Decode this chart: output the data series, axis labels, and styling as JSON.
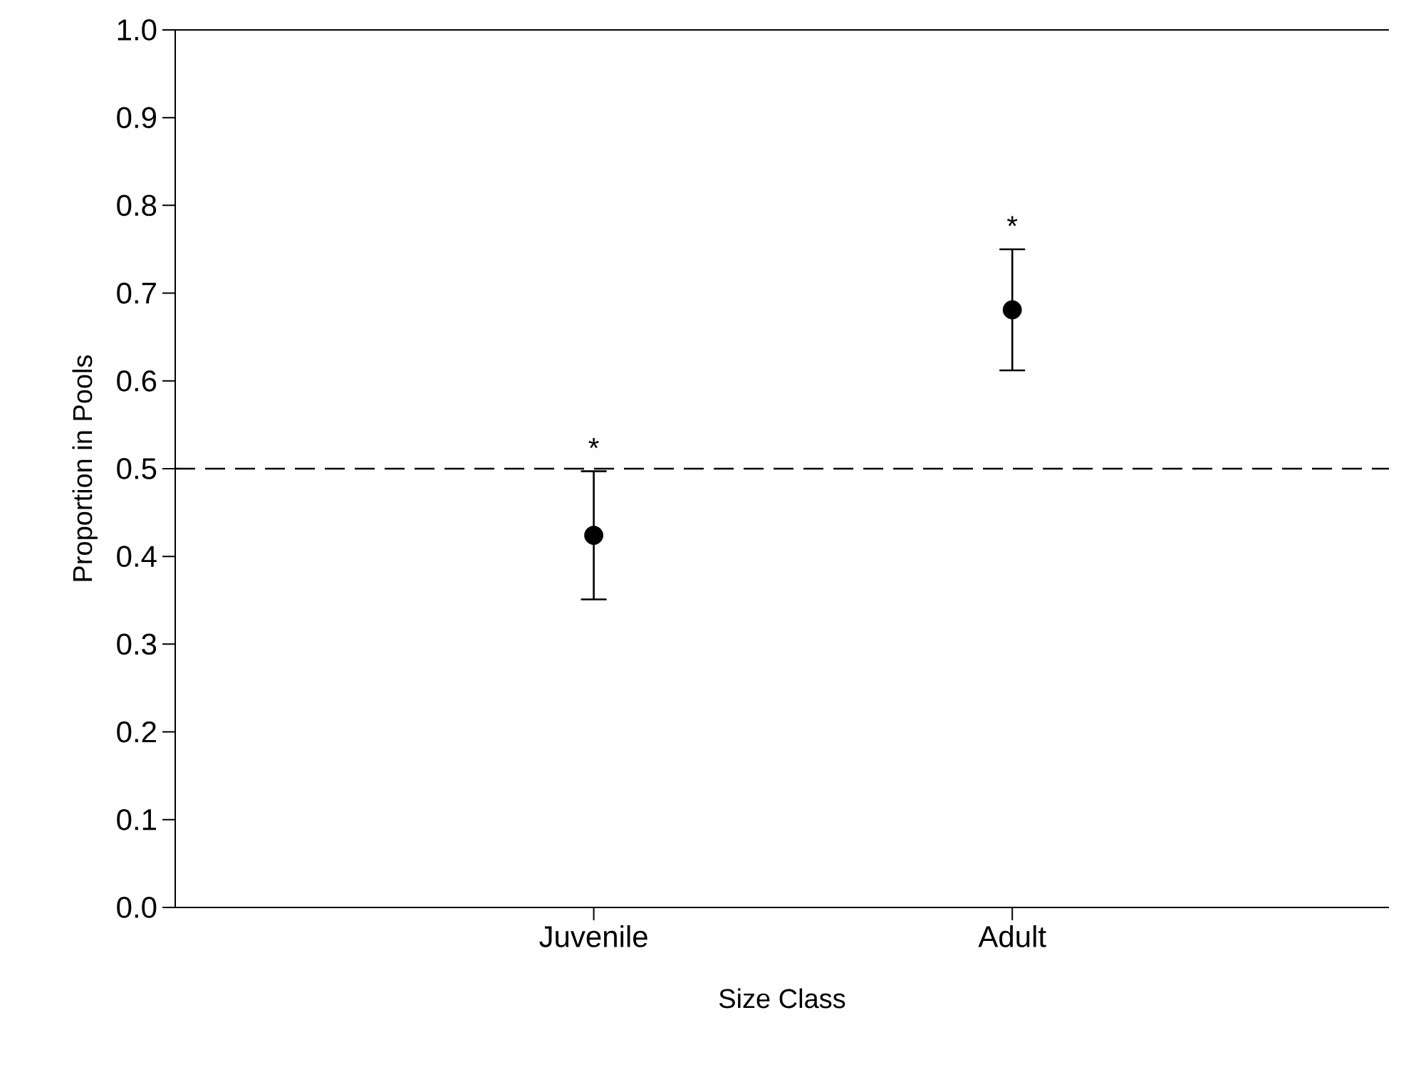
{
  "chart_data": {
    "type": "scatter",
    "xlabel": "Size Class",
    "ylabel": "Proportion in Pools",
    "categories": [
      "Juvenile",
      "Adult"
    ],
    "values": [
      0.424,
      0.681
    ],
    "errors": [
      0.073,
      0.069
    ],
    "color": "#000000",
    "marker": "circle",
    "ylim": [
      0.0,
      1.0
    ],
    "yticks": [
      {
        "value": 0,
        "label": "0.0"
      },
      0.1,
      0.2,
      0.3,
      0.4,
      0.5,
      0.6,
      0.7,
      0.8,
      0.9,
      {
        "value": 1,
        "label": "1.0"
      }
    ],
    "ref_lines": [
      {
        "axis": "y",
        "value": 0.5,
        "line_style": "dashed",
        "color": "#000000"
      }
    ],
    "annotations": [
      "*",
      "*"
    ]
  }
}
